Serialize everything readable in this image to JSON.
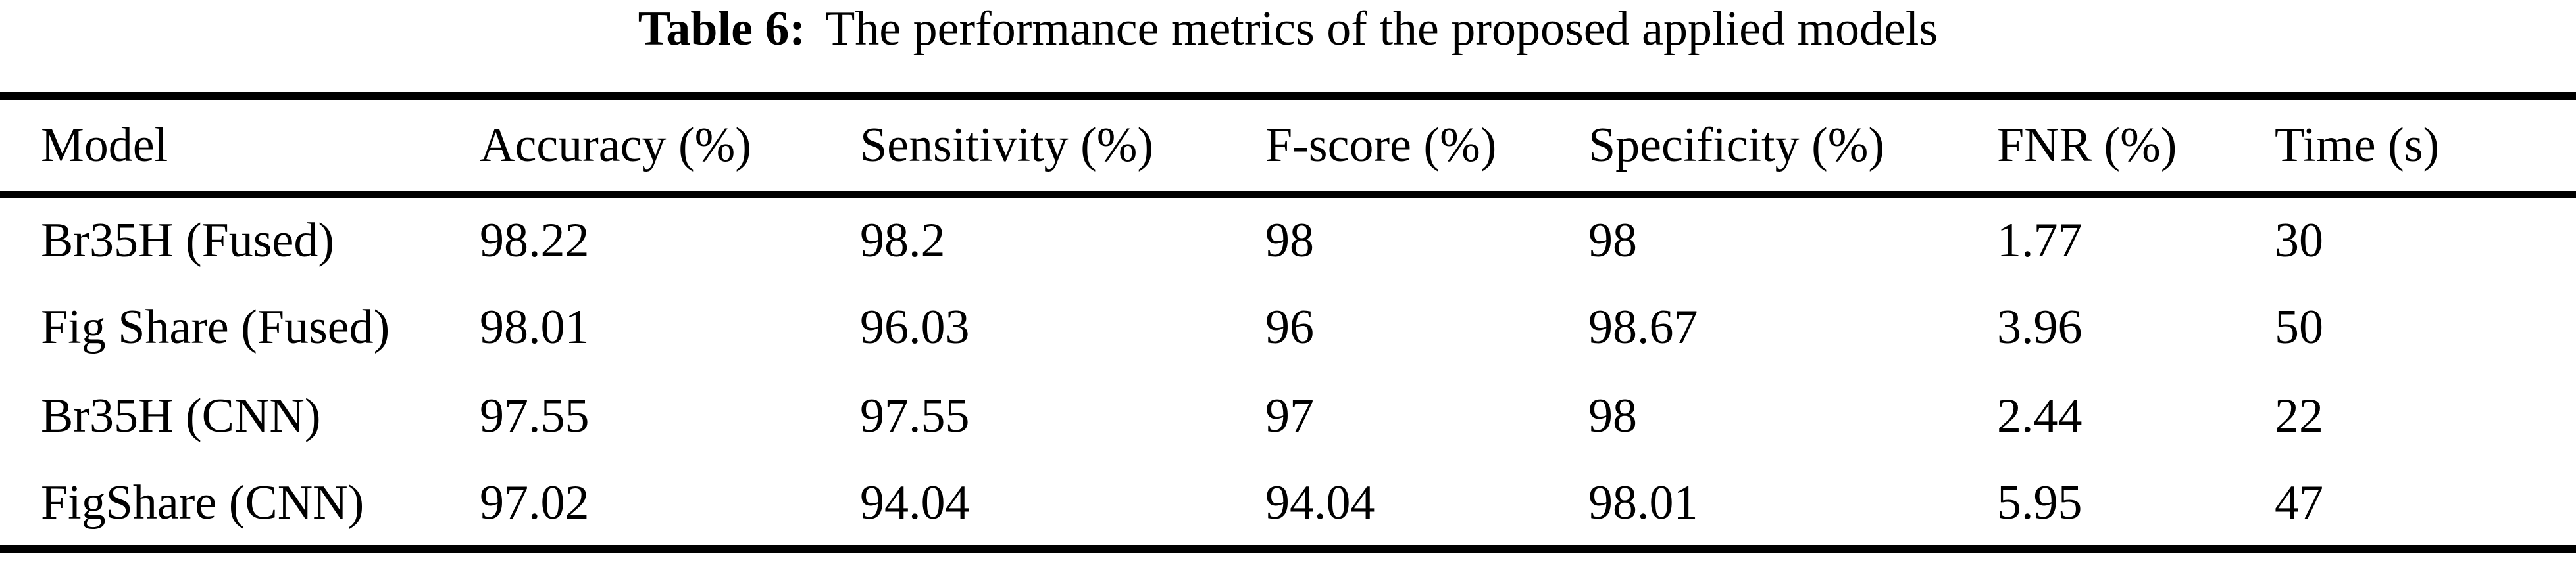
{
  "caption": {
    "label": "Table 6:",
    "text": "The performance metrics of the proposed applied models"
  },
  "table": {
    "columns": [
      "Model",
      "Accuracy (%)",
      "Sensitivity (%)",
      "F-score (%)",
      "Specificity (%)",
      "FNR (%)",
      "Time (s)"
    ],
    "rows": [
      [
        "Br35H (Fused)",
        "98.22",
        "98.2",
        "98",
        "98",
        "1.77",
        "30"
      ],
      [
        "Fig Share (Fused)",
        "98.01",
        "96.03",
        "96",
        "98.67",
        "3.96",
        "50"
      ],
      [
        "Br35H (CNN)",
        "97.55",
        "97.55",
        "97",
        "98",
        "2.44",
        "22"
      ],
      [
        "FigShare (CNN)",
        "97.02",
        "94.04",
        "94.04",
        "98.01",
        "5.95",
        "47"
      ]
    ]
  },
  "colors": {
    "text": "#000000",
    "background": "#ffffff",
    "rule": "#000000"
  }
}
